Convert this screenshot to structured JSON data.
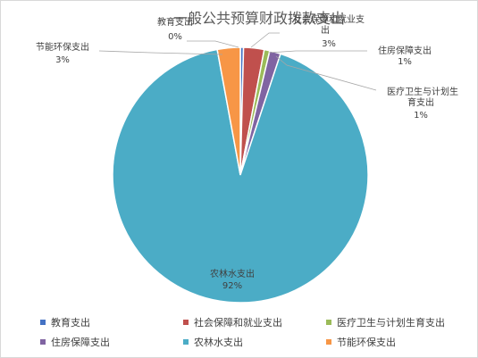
{
  "chart_data": {
    "type": "pie",
    "title": "一般公共预算财政拨款支出",
    "categories": [
      "教育支出",
      "社会保障和就业支出",
      "医疗卫生与计划生育支出",
      "住房保障支出",
      "农林水支出",
      "节能环保支出"
    ],
    "values": [
      0.4,
      2.6,
      0.7,
      1.4,
      92,
      2.9
    ],
    "percent_labels": [
      "0%",
      "3%",
      "1%",
      "1%",
      "92%",
      "3%"
    ],
    "colors": [
      "#4472C4",
      "#C0504D",
      "#9BBB59",
      "#8064A2",
      "#4BACC6",
      "#F79646"
    ],
    "legend_position": "bottom"
  },
  "labels": {
    "edu": {
      "name": "教育支出",
      "pct": "0%"
    },
    "social": {
      "name_line1": "社会保障和就业支",
      "name_line2": "出",
      "pct": "3%"
    },
    "housing": {
      "name": "住房保障支出",
      "pct": "1%"
    },
    "medical": {
      "name_line1": "医疗卫生与计划生",
      "name_line2": "育支出",
      "pct": "1%"
    },
    "agri": {
      "name": "农林水支出",
      "pct": "92%"
    },
    "energy": {
      "name": "节能环保支出",
      "pct": "3%"
    }
  }
}
